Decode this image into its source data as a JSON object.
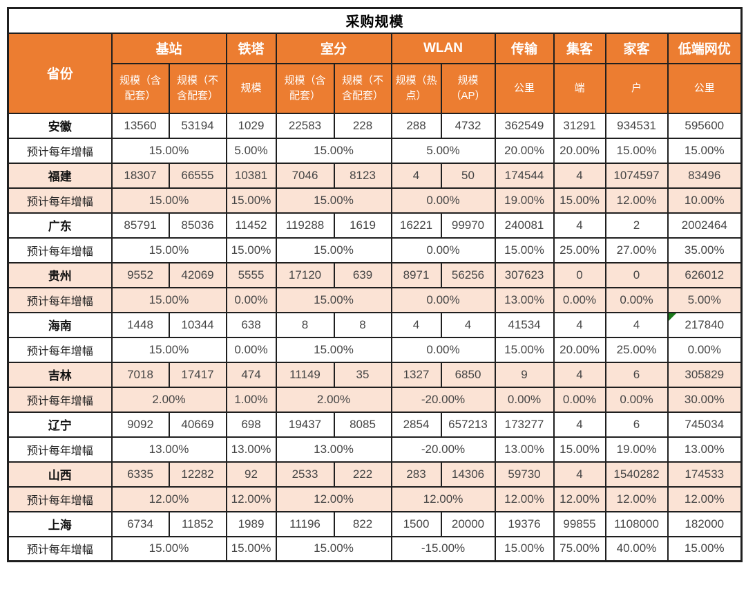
{
  "title": "采购规模",
  "colors": {
    "header_orange": "#EC7D31",
    "row_peach": "#FBE3D5",
    "border_black": "#1F1F1F",
    "flag_green": "#1B7B1B",
    "header_text": "#FFFFFF",
    "value_text": "#454545"
  },
  "chart_data": {
    "type": "table",
    "title": "采购规模",
    "province_header": "省份",
    "growth_label": "预计每年增幅",
    "growth_spans": [
      2,
      1,
      2,
      2,
      1,
      1,
      1,
      1
    ],
    "groups": [
      {
        "label": "基站",
        "cols": [
          "规模（含配套）",
          "规模（不含配套）"
        ]
      },
      {
        "label": "铁塔",
        "cols": [
          "规模"
        ]
      },
      {
        "label": "室分",
        "cols": [
          "规模（含配套）",
          "规模（不含配套）"
        ]
      },
      {
        "label": "WLAN",
        "cols": [
          "规模（热点）",
          "规模（AP）"
        ]
      },
      {
        "label": "传输",
        "cols": [
          "公里"
        ]
      },
      {
        "label": "集客",
        "cols": [
          "端"
        ]
      },
      {
        "label": "家客",
        "cols": [
          "户"
        ]
      },
      {
        "label": "低端网优",
        "cols": [
          "公里"
        ]
      }
    ],
    "rows": [
      {
        "province": "安徽",
        "shaded": false,
        "flag_col": null,
        "values": [
          "13560",
          "53194",
          "1029",
          "22583",
          "228",
          "288",
          "4732",
          "362549",
          "31291",
          "934531",
          "595600"
        ],
        "growth": [
          "15.00%",
          "5.00%",
          "15.00%",
          "5.00%",
          "20.00%",
          "20.00%",
          "15.00%",
          "15.00%"
        ]
      },
      {
        "province": "福建",
        "shaded": true,
        "flag_col": null,
        "values": [
          "18307",
          "66555",
          "10381",
          "7046",
          "8123",
          "4",
          "50",
          "174544",
          "4",
          "1074597",
          "83496"
        ],
        "growth": [
          "15.00%",
          "15.00%",
          "15.00%",
          "0.00%",
          "19.00%",
          "15.00%",
          "12.00%",
          "10.00%"
        ]
      },
      {
        "province": "广东",
        "shaded": false,
        "flag_col": null,
        "values": [
          "85791",
          "85036",
          "11452",
          "119288",
          "1619",
          "16221",
          "99970",
          "240081",
          "4",
          "2",
          "2002464"
        ],
        "growth": [
          "15.00%",
          "15.00%",
          "15.00%",
          "0.00%",
          "15.00%",
          "25.00%",
          "27.00%",
          "35.00%"
        ]
      },
      {
        "province": "贵州",
        "shaded": true,
        "flag_col": null,
        "values": [
          "9552",
          "42069",
          "5555",
          "17120",
          "639",
          "8971",
          "56256",
          "307623",
          "0",
          "0",
          "626012"
        ],
        "growth": [
          "15.00%",
          "0.00%",
          "15.00%",
          "0.00%",
          "13.00%",
          "0.00%",
          "0.00%",
          "5.00%"
        ]
      },
      {
        "province": "海南",
        "shaded": false,
        "flag_col": 10,
        "values": [
          "1448",
          "10344",
          "638",
          "8",
          "8",
          "4",
          "4",
          "41534",
          "4",
          "4",
          "217840"
        ],
        "growth": [
          "15.00%",
          "0.00%",
          "15.00%",
          "0.00%",
          "15.00%",
          "20.00%",
          "25.00%",
          "0.00%"
        ]
      },
      {
        "province": "吉林",
        "shaded": true,
        "flag_col": null,
        "values": [
          "7018",
          "17417",
          "474",
          "11149",
          "35",
          "1327",
          "6850",
          "9",
          "4",
          "6",
          "305829"
        ],
        "growth": [
          "2.00%",
          "1.00%",
          "2.00%",
          "-20.00%",
          "0.00%",
          "0.00%",
          "0.00%",
          "30.00%"
        ]
      },
      {
        "province": "辽宁",
        "shaded": false,
        "flag_col": null,
        "values": [
          "9092",
          "40669",
          "698",
          "19437",
          "8085",
          "2854",
          "657213",
          "173277",
          "4",
          "6",
          "745034"
        ],
        "growth": [
          "13.00%",
          "13.00%",
          "13.00%",
          "-20.00%",
          "13.00%",
          "15.00%",
          "19.00%",
          "13.00%"
        ]
      },
      {
        "province": "山西",
        "shaded": true,
        "flag_col": null,
        "values": [
          "6335",
          "12282",
          "92",
          "2533",
          "222",
          "283",
          "14306",
          "59730",
          "4",
          "1540282",
          "174533"
        ],
        "growth": [
          "12.00%",
          "12.00%",
          "12.00%",
          "12.00%",
          "12.00%",
          "12.00%",
          "12.00%",
          "12.00%"
        ]
      },
      {
        "province": "上海",
        "shaded": false,
        "flag_col": null,
        "values": [
          "6734",
          "11852",
          "1989",
          "11196",
          "822",
          "1500",
          "20000",
          "19376",
          "99855",
          "1108000",
          "182000"
        ],
        "growth": [
          "15.00%",
          "15.00%",
          "15.00%",
          "-15.00%",
          "15.00%",
          "75.00%",
          "40.00%",
          "15.00%"
        ]
      }
    ]
  }
}
